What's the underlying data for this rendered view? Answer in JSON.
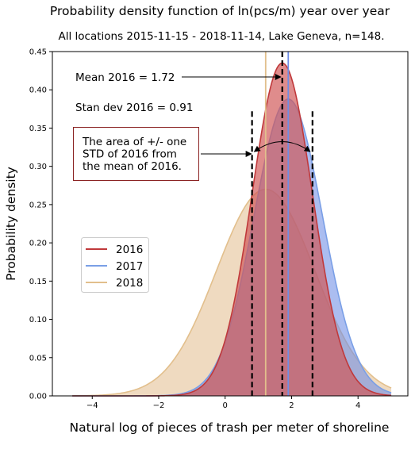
{
  "chart_data": {
    "type": "area",
    "title": "Probability density function of ln(pcs/m) year over year",
    "subtitle": "All locations 2015-11-15 - 2018-11-14, Lake Geneva, n=148.",
    "xlabel": "Natural log of pieces of trash per meter of shoreline",
    "ylabel": "Probability density",
    "xlim": [
      -5.2,
      5.5
    ],
    "ylim": [
      0,
      0.45
    ],
    "x_ticks": [
      -4,
      -2,
      0,
      2,
      4
    ],
    "y_ticks": [
      0.0,
      0.05,
      0.1,
      0.15,
      0.2,
      0.25,
      0.3,
      0.35,
      0.4,
      0.45
    ],
    "x_tick_labels": [
      "−4",
      "−2",
      "0",
      "2",
      "4"
    ],
    "y_tick_labels": [
      "0.00",
      "0.05",
      "0.10",
      "0.15",
      "0.20",
      "0.25",
      "0.30",
      "0.35",
      "0.40",
      "0.45"
    ],
    "curve_x_range": [
      -4.6,
      5.0
    ],
    "series": [
      {
        "name": "2016",
        "mean": 1.72,
        "std": 0.91,
        "peak": 0.435,
        "line_color": "#c0393b",
        "fill_color": "#d05555",
        "fill_opacity": 0.68
      },
      {
        "name": "2017",
        "mean": 1.9,
        "std": 1.03,
        "peak": 0.388,
        "line_color": "#7a9fe6",
        "fill_color": "#6f8ee6",
        "fill_opacity": 0.58
      },
      {
        "name": "2018",
        "mean": 1.22,
        "std": 1.48,
        "peak": 0.27,
        "line_color": "#e2bf8c",
        "fill_color": "#d9a66a",
        "fill_opacity": 0.42
      }
    ],
    "mean_lines": [
      {
        "series": "2016",
        "x": 1.72,
        "color": "#000000",
        "dashed": true
      },
      {
        "series": "2017",
        "x": 1.9,
        "color": "#6f8ee6",
        "dashed": false
      },
      {
        "series": "2018",
        "x": 1.22,
        "color": "#e2bf8c",
        "dashed": false
      }
    ],
    "std_lines": [
      {
        "x": 0.81,
        "y_top": 0.372
      },
      {
        "x": 2.63,
        "y_top": 0.372
      }
    ],
    "annotations": {
      "mean_text": "Mean 2016 = 1.72",
      "std_text": "Stan dev 2016 = 0.91",
      "box_lines": [
        "The area of +/- one",
        "STD of 2016 from",
        "the mean of 2016."
      ],
      "box_border_color": "#8b2323"
    },
    "legend": {
      "placement": "center-left",
      "entries": [
        "2016",
        "2017",
        "2018"
      ]
    }
  }
}
